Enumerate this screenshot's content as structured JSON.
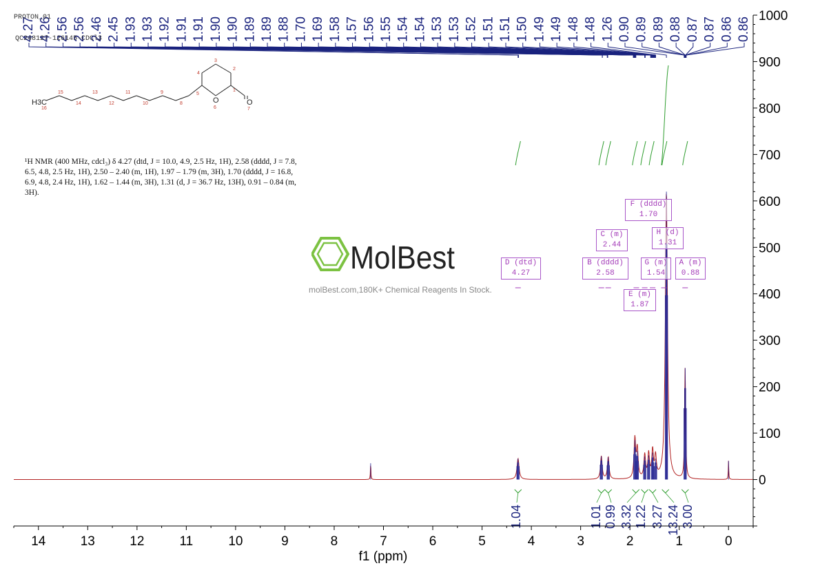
{
  "header": {
    "experiment": "PROTON_01",
    "sample": "QC248127-126145-CDCl3"
  },
  "nmr_description": "¹H NMR (400 MHz, cdcl₃) δ 4.27 (dtd, J = 10.0, 4.9, 2.5 Hz, 1H), 2.58 (dddd, J = 7.8, 6.5, 4.8, 2.5 Hz, 1H), 2.50 – 2.40 (m, 1H), 1.97 – 1.79 (m, 3H), 1.70 (dddd, J = 16.8, 6.9, 4.8, 2.4 Hz, 1H), 1.62 – 1.44 (m, 3H), 1.31 (d, J = 36.7 Hz, 13H), 0.91 – 0.84 (m, 3H).",
  "watermark": {
    "brand": "MolBest",
    "tagline": "molBest.com,180K+ Chemical Reagents In Stock."
  },
  "structure": {
    "atom_labels": [
      "H3C",
      "16",
      "15",
      "14",
      "13",
      "12",
      "11",
      "10",
      "9",
      "8",
      "5",
      "4",
      "3",
      "2",
      "1",
      "O",
      "6",
      "O",
      "7"
    ]
  },
  "chart_data": {
    "type": "line",
    "xlabel": "f1 (ppm)",
    "ylabel": "",
    "xlim": [
      14.5,
      -0.5
    ],
    "ylim": [
      -100,
      1000
    ],
    "x_ticks": [
      14,
      13,
      12,
      11,
      10,
      9,
      8,
      7,
      6,
      5,
      4,
      3,
      2,
      1,
      0
    ],
    "y_ticks": [
      0,
      100,
      200,
      300,
      400,
      500,
      600,
      700,
      800,
      900,
      1000
    ],
    "peak_labels": [
      "4.27",
      "4.26",
      "2.56",
      "2.56",
      "2.46",
      "2.45",
      "1.93",
      "1.93",
      "1.92",
      "1.91",
      "1.91",
      "1.90",
      "1.90",
      "1.89",
      "1.89",
      "1.88",
      "1.70",
      "1.69",
      "1.58",
      "1.57",
      "1.56",
      "1.55",
      "1.54",
      "1.54",
      "1.53",
      "1.53",
      "1.52",
      "1.51",
      "1.51",
      "1.50",
      "1.49",
      "1.49",
      "1.48",
      "1.48",
      "1.26",
      "0.90",
      "0.89",
      "0.89",
      "0.88",
      "0.87",
      "0.87",
      "0.86",
      "0.86"
    ],
    "peaks": [
      {
        "x": 7.26,
        "y": 35
      },
      {
        "x": 4.27,
        "y": 45
      },
      {
        "x": 2.58,
        "y": 50
      },
      {
        "x": 2.44,
        "y": 48
      },
      {
        "x": 1.9,
        "y": 85
      },
      {
        "x": 1.85,
        "y": 62
      },
      {
        "x": 1.7,
        "y": 50
      },
      {
        "x": 1.62,
        "y": 52
      },
      {
        "x": 1.54,
        "y": 58
      },
      {
        "x": 1.48,
        "y": 45
      },
      {
        "x": 1.26,
        "y": 620
      },
      {
        "x": 0.88,
        "y": 240
      },
      {
        "x": 0.0,
        "y": 40
      }
    ],
    "multiplets": [
      {
        "label": "D (dtd)",
        "shift": "4.27",
        "center": 4.27
      },
      {
        "label": "B (dddd)",
        "shift": "2.58",
        "center": 2.58
      },
      {
        "label": "C (m)",
        "shift": "2.44",
        "center": 2.44
      },
      {
        "label": "F (dddd)",
        "shift": "1.70",
        "center": 1.7
      },
      {
        "label": "H (d)",
        "shift": "1.31",
        "center": 1.31
      },
      {
        "label": "G (m)",
        "shift": "1.54",
        "center": 1.54
      },
      {
        "label": "A (m)",
        "shift": "0.88",
        "center": 0.88
      },
      {
        "label": "E (m)",
        "shift": "1.87",
        "center": 1.87
      }
    ],
    "integrals": [
      {
        "value": "1.04",
        "center": 4.27
      },
      {
        "value": "1.01",
        "center": 2.58
      },
      {
        "value": "0.99",
        "center": 2.44
      },
      {
        "value": "3.32",
        "center": 1.88
      },
      {
        "value": "1.22",
        "center": 1.7
      },
      {
        "value": "3.27",
        "center": 1.54
      },
      {
        "value": "13.24",
        "center": 1.28
      },
      {
        "value": "3.00",
        "center": 0.88
      }
    ],
    "colors": {
      "spectrum": "#b22222",
      "peaks_overlay": "#1a1a8c",
      "integral": "#2e9d2e",
      "annotation": "#a33ab8",
      "label_line": "#1a237e"
    }
  }
}
